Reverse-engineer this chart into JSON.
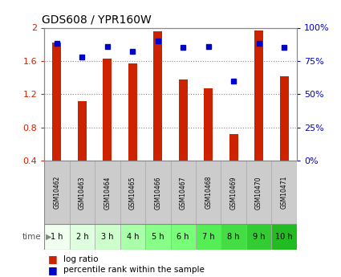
{
  "title": "GDS608 / YPR160W",
  "samples": [
    "GSM10462",
    "GSM10463",
    "GSM10464",
    "GSM10465",
    "GSM10466",
    "GSM10467",
    "GSM10468",
    "GSM10469",
    "GSM10470",
    "GSM10471"
  ],
  "time_labels": [
    "1 h",
    "2 h",
    "3 h",
    "4 h",
    "5 h",
    "6 h",
    "7 h",
    "8 h",
    "9 h",
    "10 h"
  ],
  "log_ratio": [
    1.82,
    1.12,
    1.63,
    1.57,
    1.96,
    1.38,
    1.27,
    0.72,
    1.97,
    1.42
  ],
  "percentile_rank": [
    88,
    78,
    86,
    82,
    90,
    85,
    86,
    60,
    88,
    85
  ],
  "bar_color": "#cc2200",
  "dot_color": "#0000cc",
  "ylim_left": [
    0.4,
    2.0
  ],
  "ylim_right": [
    0,
    100
  ],
  "yticks_left": [
    0.4,
    0.8,
    1.2,
    1.6,
    2.0
  ],
  "ytick_labels_left": [
    "0.4",
    "0.8",
    "1.2",
    "1.6",
    "2"
  ],
  "yticks_right": [
    0,
    25,
    50,
    75,
    100
  ],
  "ytick_labels_right": [
    "0%",
    "25%",
    "50%",
    "75%",
    "100%"
  ],
  "grid_color": "#888888",
  "bar_width": 0.35,
  "time_colors": [
    "#f0fff0",
    "#ddfedd",
    "#bbffbb",
    "#99ff99",
    "#77ff77",
    "#55ff55",
    "#44ee44",
    "#33dd33",
    "#22cc22",
    "#11bb11"
  ],
  "gsm_color": "#cccccc",
  "bg_color": "#ffffff",
  "label_color_left": "#cc2200",
  "label_color_right": "#0000cc"
}
